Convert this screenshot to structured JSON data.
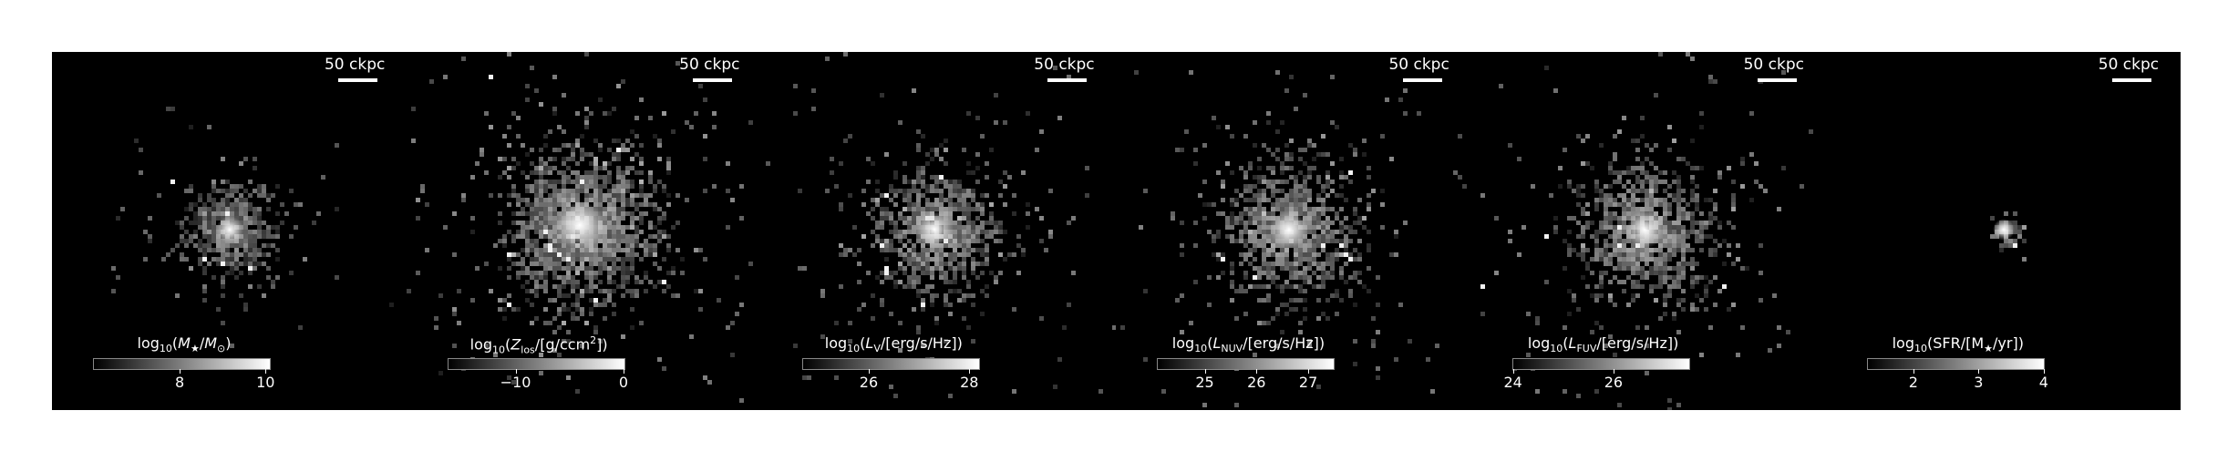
{
  "scale_bar_label": "50 ckpc",
  "panels": [
    {
      "colorbar_title_html": "log<sub>10</sub>(<i>M</i><sub>★</sub>/<i>M</i><sub>⊙</sub>)",
      "vmin": 6.0,
      "vmax": 10.1,
      "ticks": [
        {
          "value": 8,
          "label": "8"
        },
        {
          "value": 10,
          "label": "10"
        }
      ]
    },
    {
      "colorbar_title_html": "log<sub>10</sub>(<i>Z</i><sub>los</sub>/[g/ccm<sup>2</sup>])",
      "vmin": -16.2,
      "vmax": 0.1,
      "ticks": [
        {
          "value": -10,
          "label": "−10"
        },
        {
          "value": 0,
          "label": "0"
        }
      ]
    },
    {
      "colorbar_title_html": "log<sub>10</sub>(<i>L</i><sub>V</sub>/[erg/s/Hz])",
      "vmin": 24.7,
      "vmax": 28.2,
      "ticks": [
        {
          "value": 26,
          "label": "26"
        },
        {
          "value": 28,
          "label": "28"
        }
      ]
    },
    {
      "colorbar_title_html": "log<sub>10</sub>(<i>L</i><sub>NUV</sub>/[erg/s/Hz])",
      "vmin": 24.1,
      "vmax": 27.5,
      "ticks": [
        {
          "value": 25,
          "label": "25"
        },
        {
          "value": 26,
          "label": "26"
        },
        {
          "value": 27,
          "label": "27"
        }
      ]
    },
    {
      "colorbar_title_html": "log<sub>10</sub>(<i>L</i><sub>FUV</sub>/[erg/s/Hz])",
      "vmin": 24.0,
      "vmax": 27.5,
      "ticks": [
        {
          "value": 24,
          "label": "24"
        },
        {
          "value": 26,
          "label": "26"
        }
      ]
    },
    {
      "colorbar_title_html": "log<sub>10</sub>(SFR/[M<sub>★</sub>/yr])",
      "vmin": 1.3,
      "vmax": 4.0,
      "ticks": [
        {
          "value": 2,
          "label": "2"
        },
        {
          "value": 3,
          "label": "3"
        },
        {
          "value": 4,
          "label": "4"
        }
      ]
    }
  ]
}
